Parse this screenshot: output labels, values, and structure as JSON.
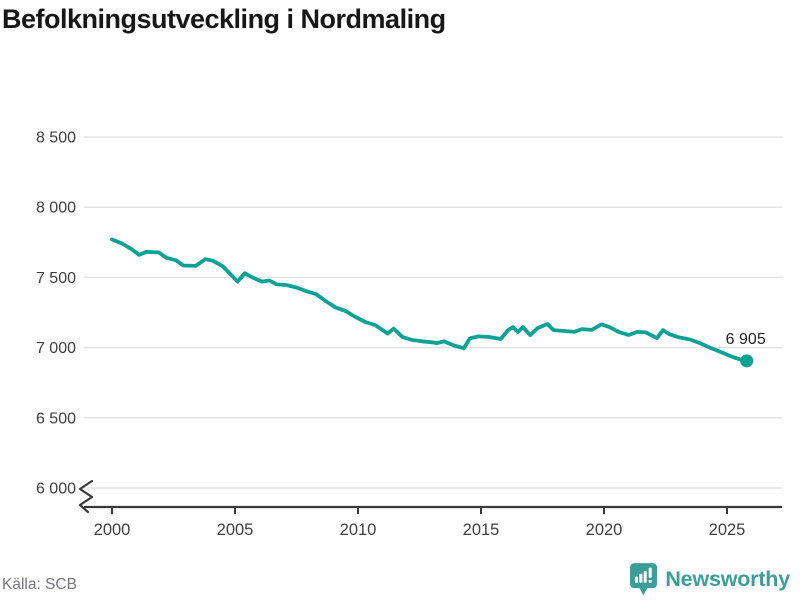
{
  "header": {
    "title": "Befolkningsutveckling i Nordmaling"
  },
  "footer": {
    "source": "Källa: SCB",
    "brand": "Newsworthy"
  },
  "colors": {
    "line": "#0CA295",
    "grid": "#E3E3E3",
    "axis": "#3A3A3A",
    "tick_text": "#3F3F3F",
    "title_text": "#171717",
    "muted_text": "#75757E",
    "brand_teal": "#3C9E98",
    "annotation": "#1F1F1F"
  },
  "chart_data": {
    "type": "line",
    "title": "Befolkningsutveckling i Nordmaling",
    "xlabel": "",
    "ylabel": "",
    "grid": "horizontal",
    "legend": "none",
    "x_axis": {
      "ticks": [
        2000,
        2005,
        2010,
        2015,
        2020,
        2025
      ],
      "tick_labels": [
        "2000",
        "2005",
        "2010",
        "2015",
        "2020",
        "2025"
      ],
      "range": [
        1998.9,
        2027.2
      ]
    },
    "y_axis": {
      "ticks": [
        6000,
        6500,
        7000,
        7500,
        8000,
        8500
      ],
      "tick_labels": [
        "6 000",
        "6 500",
        "7 000",
        "7 500",
        "8 000",
        "8 500"
      ],
      "range": [
        6000,
        8500
      ],
      "axis_break_below": 6000
    },
    "series": [
      {
        "end_label": "6 905",
        "end_dot": true,
        "points": [
          [
            2000.0,
            7770
          ],
          [
            2000.4,
            7742
          ],
          [
            2000.8,
            7700
          ],
          [
            2001.1,
            7660
          ],
          [
            2001.4,
            7682
          ],
          [
            2001.9,
            7678
          ],
          [
            2002.2,
            7640
          ],
          [
            2002.6,
            7622
          ],
          [
            2002.9,
            7585
          ],
          [
            2003.4,
            7582
          ],
          [
            2003.8,
            7630
          ],
          [
            2004.1,
            7618
          ],
          [
            2004.5,
            7580
          ],
          [
            2004.9,
            7508
          ],
          [
            2005.1,
            7470
          ],
          [
            2005.4,
            7530
          ],
          [
            2005.7,
            7500
          ],
          [
            2006.1,
            7470
          ],
          [
            2006.4,
            7478
          ],
          [
            2006.7,
            7450
          ],
          [
            2007.1,
            7445
          ],
          [
            2007.5,
            7428
          ],
          [
            2007.9,
            7402
          ],
          [
            2008.3,
            7380
          ],
          [
            2008.7,
            7330
          ],
          [
            2009.1,
            7285
          ],
          [
            2009.5,
            7260
          ],
          [
            2009.9,
            7218
          ],
          [
            2010.3,
            7182
          ],
          [
            2010.7,
            7160
          ],
          [
            2011.0,
            7125
          ],
          [
            2011.2,
            7100
          ],
          [
            2011.45,
            7135
          ],
          [
            2011.8,
            7076
          ],
          [
            2012.2,
            7054
          ],
          [
            2012.6,
            7045
          ],
          [
            2013.0,
            7038
          ],
          [
            2013.2,
            7032
          ],
          [
            2013.5,
            7044
          ],
          [
            2013.9,
            7015
          ],
          [
            2014.3,
            6996
          ],
          [
            2014.55,
            7066
          ],
          [
            2014.9,
            7080
          ],
          [
            2015.3,
            7076
          ],
          [
            2015.8,
            7061
          ],
          [
            2016.1,
            7125
          ],
          [
            2016.3,
            7146
          ],
          [
            2016.5,
            7111
          ],
          [
            2016.7,
            7146
          ],
          [
            2017.0,
            7089
          ],
          [
            2017.3,
            7139
          ],
          [
            2017.7,
            7168
          ],
          [
            2017.95,
            7125
          ],
          [
            2018.4,
            7118
          ],
          [
            2018.8,
            7112
          ],
          [
            2019.1,
            7132
          ],
          [
            2019.5,
            7126
          ],
          [
            2019.9,
            7165
          ],
          [
            2020.2,
            7148
          ],
          [
            2020.6,
            7112
          ],
          [
            2021.0,
            7090
          ],
          [
            2021.35,
            7112
          ],
          [
            2021.7,
            7108
          ],
          [
            2022.15,
            7068
          ],
          [
            2022.4,
            7125
          ],
          [
            2022.65,
            7096
          ],
          [
            2023.0,
            7075
          ],
          [
            2023.5,
            7058
          ],
          [
            2023.9,
            7032
          ],
          [
            2024.3,
            7000
          ],
          [
            2024.7,
            6972
          ],
          [
            2025.0,
            6950
          ],
          [
            2025.3,
            6929
          ],
          [
            2025.55,
            6915
          ],
          [
            2025.8,
            6905
          ]
        ]
      }
    ]
  }
}
